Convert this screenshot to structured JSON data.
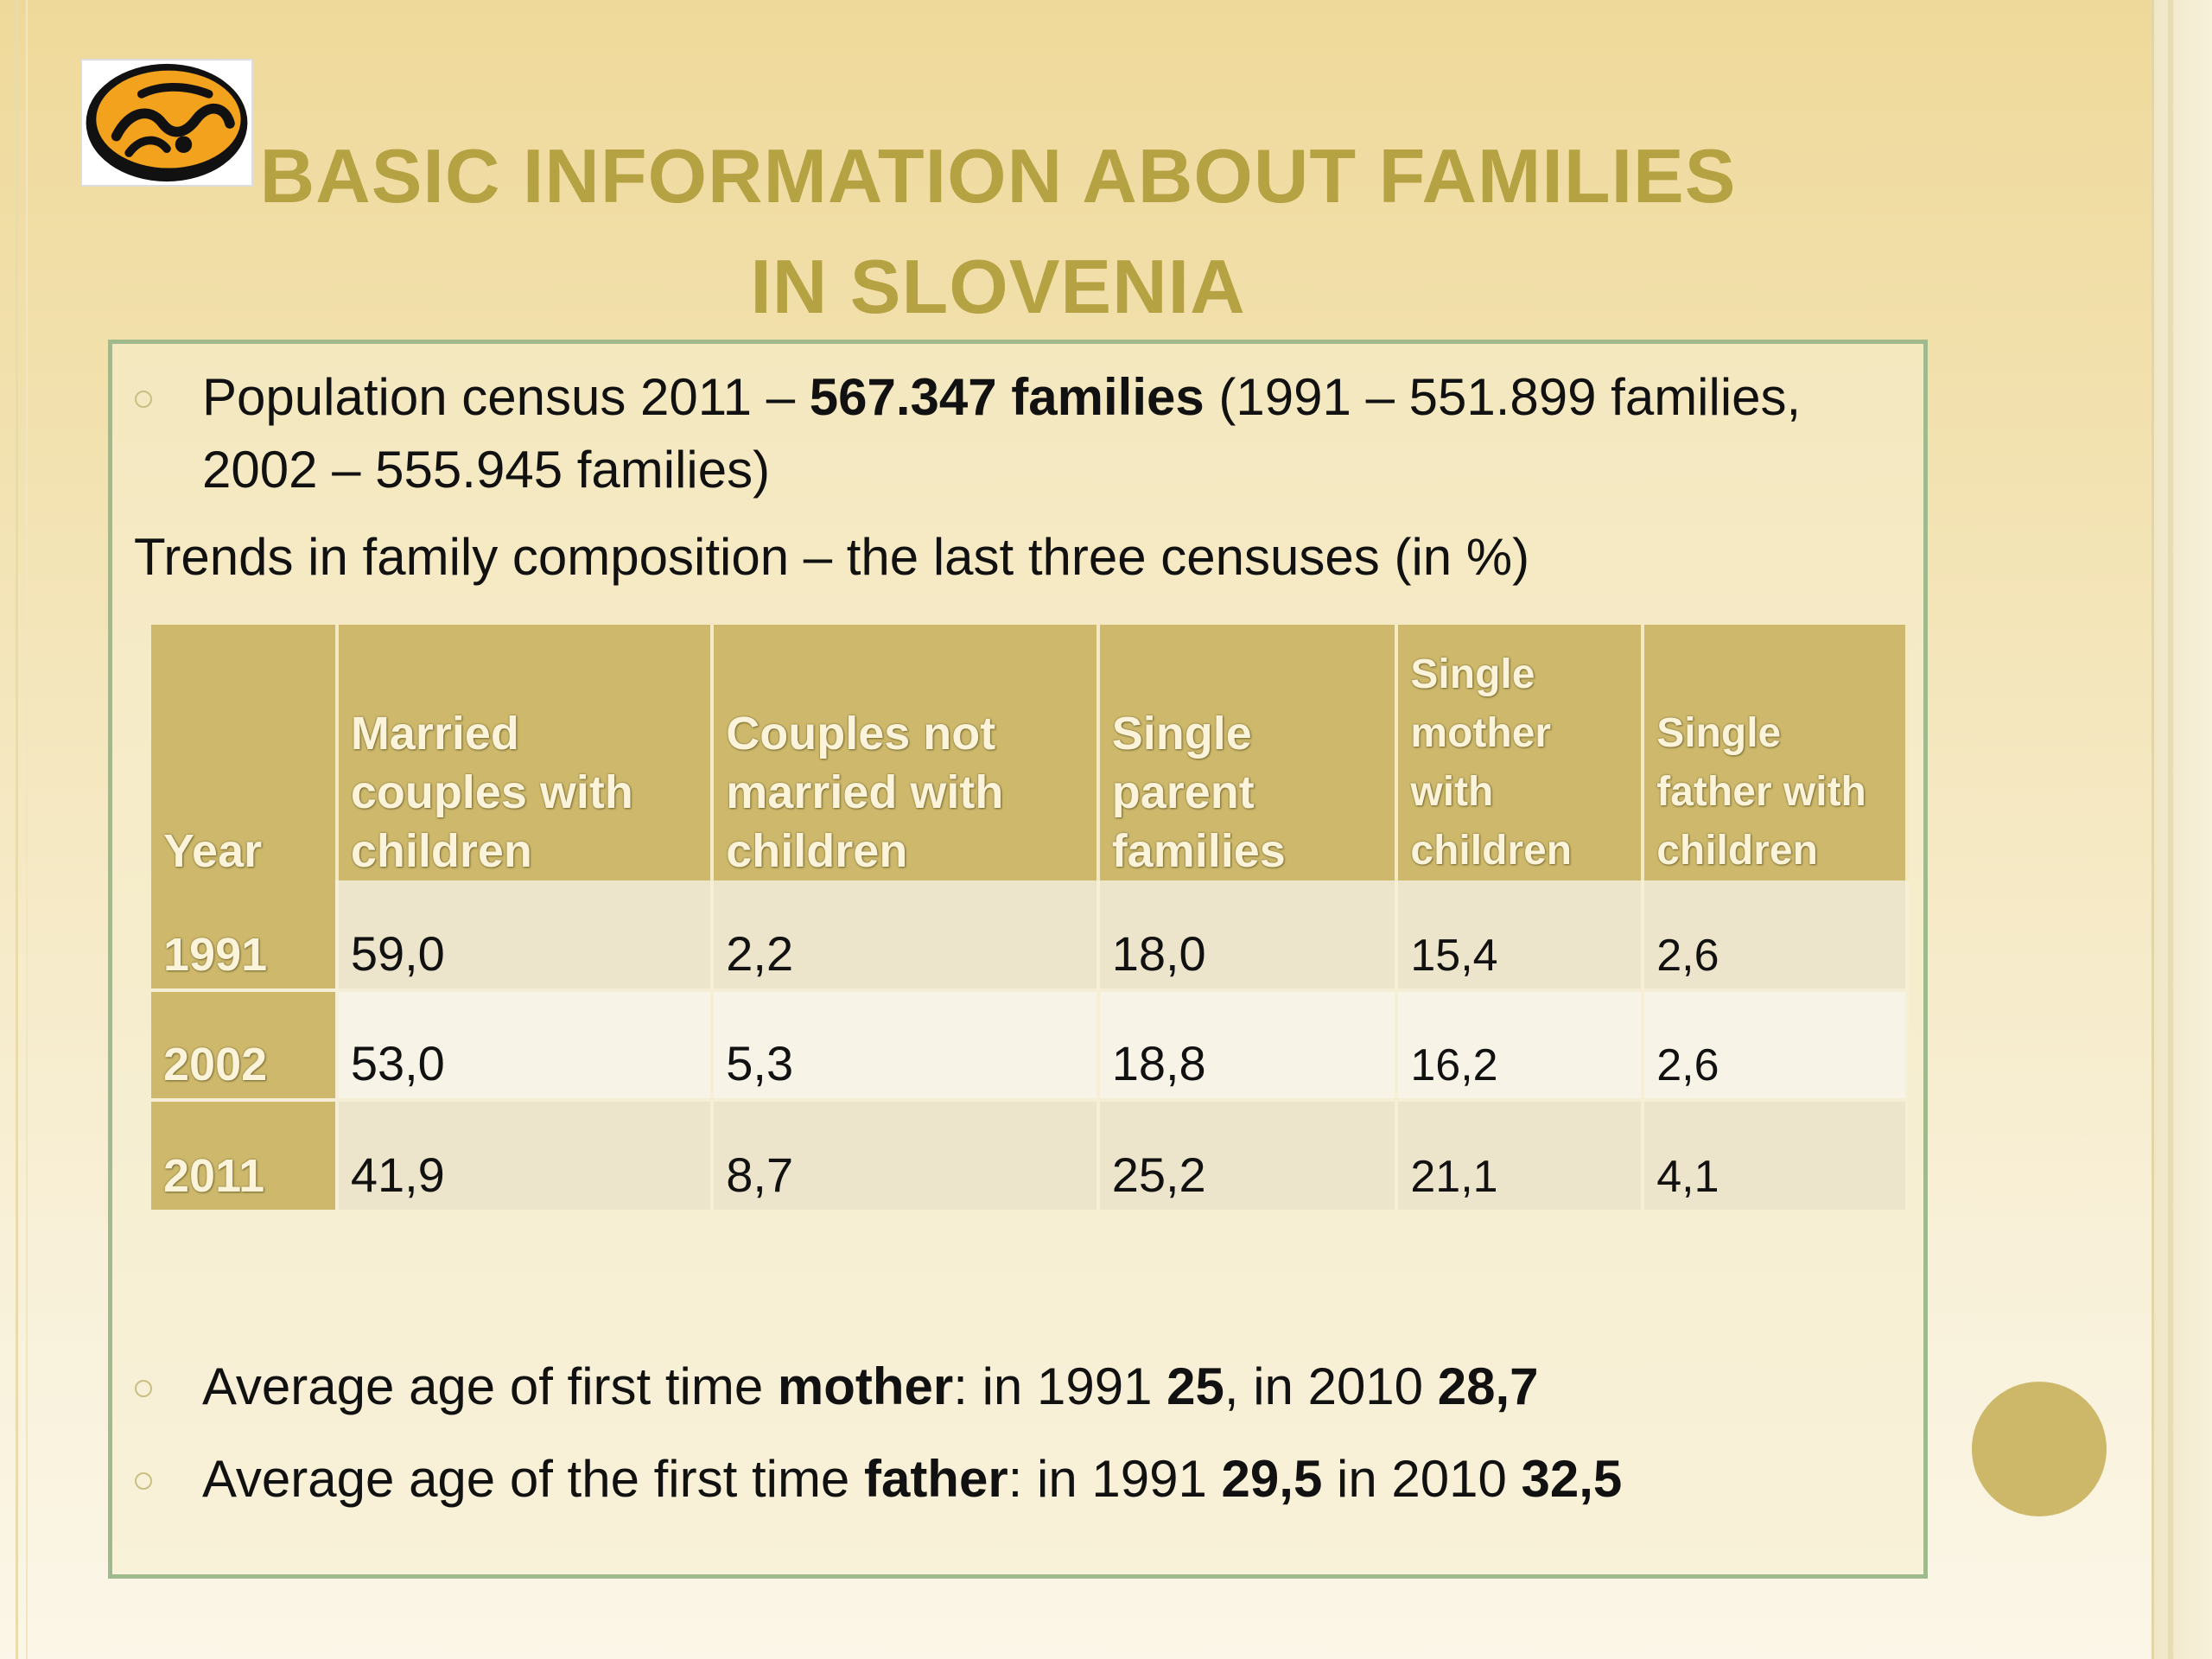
{
  "slide": {
    "title_line1": "BASIC INFORMATION ABOUT FAMILIES",
    "title_line2": "IN SLOVENIA",
    "logo_icon": "hands-logo-icon",
    "accent_color": "#b5a242"
  },
  "census": {
    "prefix": "Population census 2011 – ",
    "highlight": "567.347 families",
    "suffix": " (1991 – 551.899 families,",
    "line2": "2002 – 555.945 families)"
  },
  "trends_heading": "Trends in family composition – the last three censuses (in %)",
  "table": {
    "headers": [
      "Year",
      "Married couples with children",
      "Couples not married with children",
      "Single parent families",
      "Single mother with children",
      "Single father with children"
    ],
    "rows": [
      [
        "1991",
        "59,0",
        "2,2",
        "18,0",
        "15,4",
        "2,6"
      ],
      [
        "2002",
        "53,0",
        "5,3",
        "18,8",
        "16,2",
        "2,6"
      ],
      [
        "2011",
        "41,9",
        "8,7",
        "25,2",
        "21,1",
        "4,1"
      ]
    ]
  },
  "mother_age": {
    "text1": "Average age of first time ",
    "keyword": "mother",
    "text2": ": in 1991 ",
    "val1991": "25",
    "text3": ", in 2010 ",
    "val2010": "28,7"
  },
  "father_age": {
    "text1": "Average age of the first time ",
    "keyword": "father",
    "text2": ": in 1991 ",
    "val1991": "29,5",
    "text3": " in 2010 ",
    "val2010": "32,5"
  }
}
